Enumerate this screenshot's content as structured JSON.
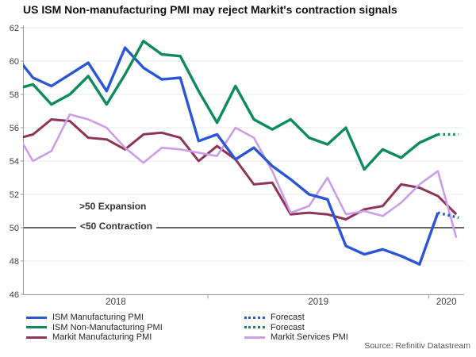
{
  "title": "US ISM Non-manufacturing PMI may reject Markit's contraction signals",
  "annotations": {
    "expansion": ">50 Expansion",
    "contraction": "<50 Contraction"
  },
  "source": "Source: Refinitiv Datastream",
  "legend": {
    "column1": [
      {
        "label": "ISM Manufacturing PMI",
        "series_key": "ism_mfg",
        "line_style": "solid"
      },
      {
        "label": "ISM Non-Manufacturing PMI",
        "series_key": "ism_nonmfg",
        "line_style": "solid"
      },
      {
        "label": "Markit Manufacturing PMI",
        "series_key": "markit_mfg",
        "line_style": "solid"
      }
    ],
    "column2": [
      {
        "label": "Forecast",
        "series_key": "ism_mfg",
        "line_style": "dotted"
      },
      {
        "label": "Forecast",
        "series_key": "ism_nonmfg",
        "line_style": "dotted"
      },
      {
        "label": "Markit Services PMI",
        "series_key": "markit_svcs",
        "line_style": "solid"
      }
    ]
  },
  "chart_data": {
    "type": "line",
    "title": "US ISM Non-manufacturing PMI may reject Markit's contraction signals",
    "ylim": [
      46,
      62
    ],
    "y_ticks": [
      46,
      48,
      50,
      52,
      54,
      56,
      58,
      60,
      62
    ],
    "grid": true,
    "legend_position": "bottom",
    "reference_line": {
      "value": 50,
      "label_above": ">50 Expansion",
      "label_below": "<50 Contraction"
    },
    "year_labels": [
      "2018",
      "2019",
      "2020"
    ],
    "year_boundary_month_indices": [
      10.5,
      22.5
    ],
    "months": [
      "Feb 2018",
      "Mar 2018",
      "Apr 2018",
      "May 2018",
      "Jun 2018",
      "Jul 2018",
      "Aug 2018",
      "Sep 2018",
      "Oct 2018",
      "Nov 2018",
      "Dec 2018",
      "Jan 2019",
      "Feb 2019",
      "Mar 2019",
      "Apr 2019",
      "May 2019",
      "Jun 2019",
      "Jul 2019",
      "Aug 2019",
      "Sep 2019",
      "Oct 2019",
      "Nov 2019",
      "Dec 2019",
      "Jan 2020",
      "Feb 2020"
    ],
    "forecast_label": "Forecast",
    "series": [
      {
        "key": "ism_mfg",
        "name": "ISM Manufacturing PMI",
        "color": "#2b55d5",
        "values": [
          60.4,
          59.0,
          58.5,
          59.2,
          59.9,
          58.2,
          60.8,
          59.6,
          58.9,
          59.0,
          55.2,
          55.6,
          54.1,
          54.8,
          53.7,
          52.9,
          52.0,
          51.7,
          48.9,
          48.4,
          48.7,
          48.3,
          47.8,
          50.9
        ],
        "forecast": [
          50.6
        ]
      },
      {
        "key": "ism_nonmfg",
        "name": "ISM Non-Manufacturing PMI",
        "color": "#0e8a5e",
        "values": [
          58.3,
          58.6,
          57.4,
          58.0,
          59.1,
          57.4,
          59.2,
          61.2,
          60.4,
          60.3,
          58.2,
          56.3,
          58.5,
          56.5,
          55.9,
          56.5,
          55.4,
          55.0,
          56.0,
          53.5,
          54.7,
          54.2,
          55.1,
          55.6
        ],
        "forecast": [
          55.6
        ]
      },
      {
        "key": "markit_mfg",
        "name": "Markit Manufacturing PMI",
        "color": "#8d3458",
        "values": [
          55.3,
          55.6,
          56.5,
          56.4,
          55.4,
          55.3,
          54.7,
          55.6,
          55.7,
          55.4,
          54.0,
          54.9,
          54.1,
          52.6,
          52.7,
          50.8,
          50.9,
          50.8,
          50.5,
          51.1,
          51.3,
          52.6,
          52.4,
          51.9,
          50.8
        ]
      },
      {
        "key": "markit_svcs",
        "name": "Markit Services PMI",
        "color": "#c99ee6",
        "values": [
          55.9,
          54.0,
          54.6,
          56.8,
          56.5,
          56.0,
          54.8,
          53.9,
          54.8,
          54.7,
          54.5,
          54.3,
          56.0,
          55.4,
          53.4,
          50.9,
          51.3,
          53.0,
          50.8,
          51.0,
          50.7,
          51.5,
          52.6,
          53.4,
          49.4
        ]
      }
    ],
    "colors": {
      "grid": "#e3e9e9",
      "axis": "#999999",
      "axis_text": "#404040",
      "reference_line": "#4d4d4d"
    }
  }
}
